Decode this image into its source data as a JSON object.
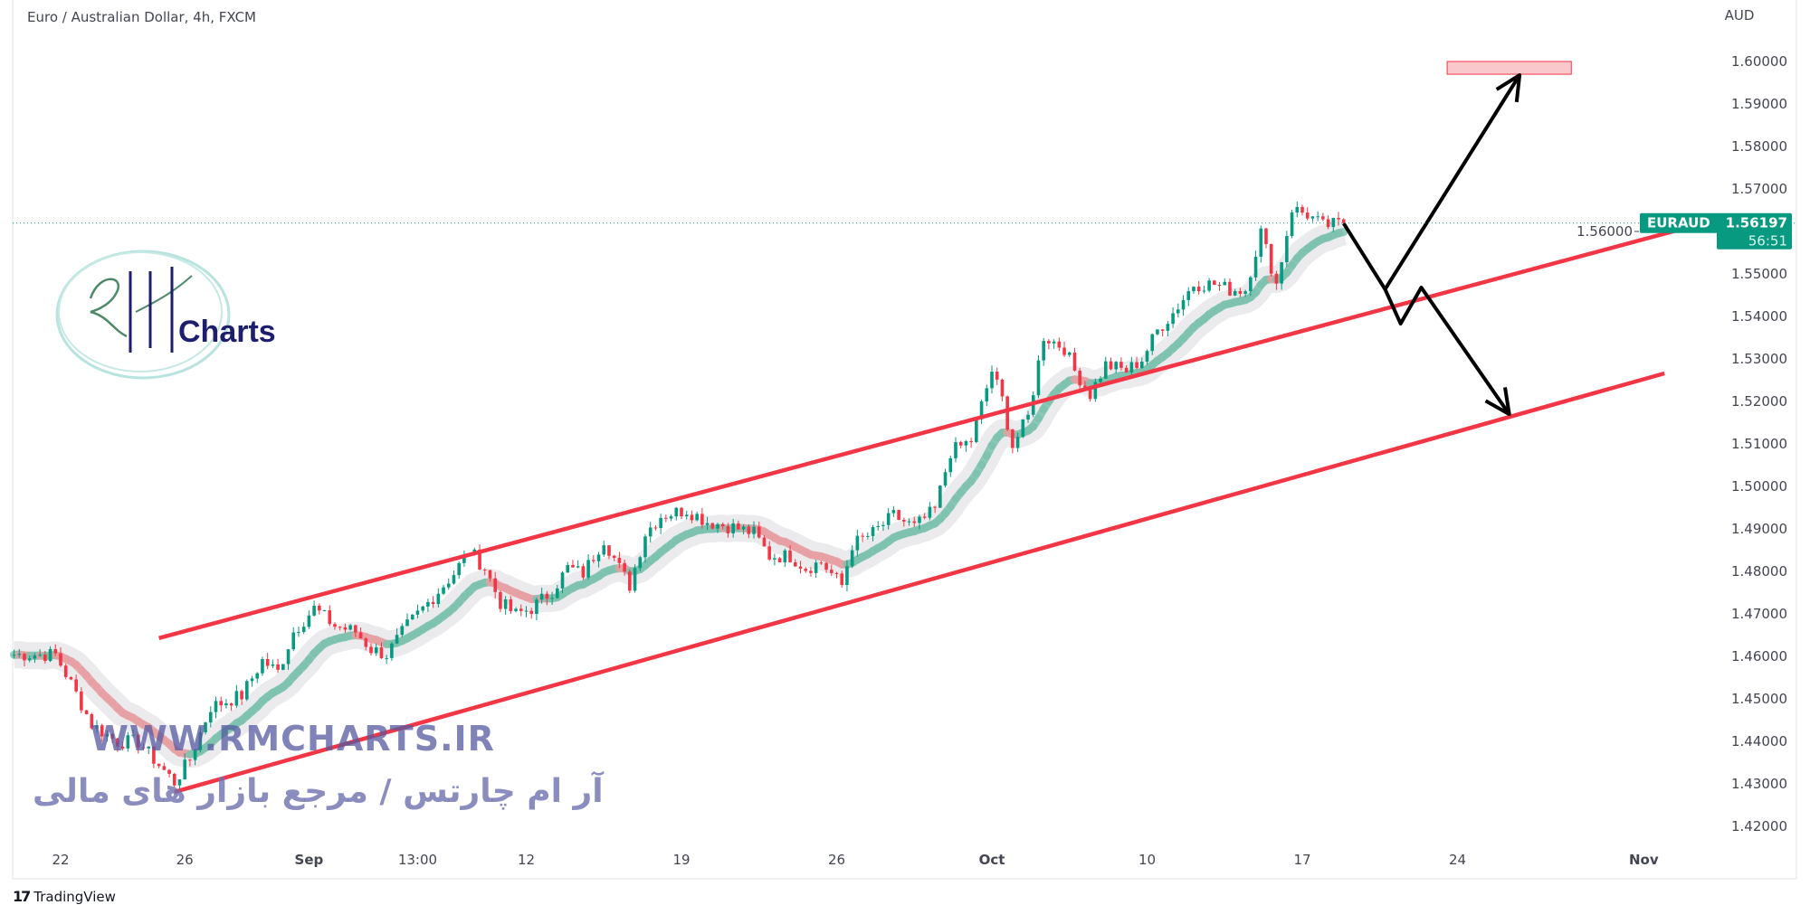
{
  "header": {
    "title": "Euro / Australian Dollar, 4h, FXCM"
  },
  "footer": {
    "brand": "TradingView",
    "brand_mark": "17"
  },
  "watermark": {
    "logo_text": "Charts",
    "logo_script": "RM",
    "url": "WWW.RMCHARTS.IR",
    "persian": "آر ام چارتس / مرجع بازار های مالی"
  },
  "colors": {
    "up": "#089981",
    "down": "#f23645",
    "channel": "#f23645",
    "arrow": "#000000",
    "target_fill": "#f8c8cc",
    "tag": "#089981",
    "ma_up": "#7cc2ae",
    "ma_down": "#e7a0a3"
  },
  "price_tag": {
    "symbol": "EURAUD",
    "price": "1.56197",
    "countdown": "56:51"
  },
  "chart_data": {
    "type": "candlestick",
    "symbol": "EURAUD",
    "interval": "4h",
    "currency_label": "AUD",
    "ylim": [
      1.415,
      1.61
    ],
    "y_ticks": [
      "1.60000",
      "1.59000",
      "1.58000",
      "1.57000",
      "1.56000",
      "1.55000",
      "1.54000",
      "1.53000",
      "1.52000",
      "1.51000",
      "1.50000",
      "1.49000",
      "1.48000",
      "1.47000",
      "1.46000",
      "1.45000",
      "1.44000",
      "1.43000",
      "1.42000"
    ],
    "x_ticks": [
      {
        "label": "22",
        "date": "Aug 22 00:00",
        "bold": false
      },
      {
        "label": "26",
        "date": "Aug 26 00:00",
        "bold": false
      },
      {
        "label": "Sep",
        "date": "Sep 1 00:00",
        "bold": true
      },
      {
        "label": "13:00",
        "date": "Sep 6 12:00",
        "bold": false
      },
      {
        "label": "12",
        "date": "Sep 12 00:00",
        "bold": false
      },
      {
        "label": "19",
        "date": "Sep 19 00:00",
        "bold": false
      },
      {
        "label": "26",
        "date": "Sep 26 00:00",
        "bold": false
      },
      {
        "label": "Oct",
        "date": "Oct 3 00:00",
        "bold": true
      },
      {
        "label": "10",
        "date": "Oct 10 00:00",
        "bold": false
      },
      {
        "label": "17",
        "date": "Oct 17 00:00",
        "bold": false
      },
      {
        "label": "24",
        "date": "Oct 24 00:00",
        "bold": false
      },
      {
        "label": "Nov",
        "date": "Nov 1 00:00",
        "bold": true
      }
    ],
    "last_price": 1.56197,
    "close_path": [
      [
        "Aug 18 12:00",
        1.4604
      ],
      [
        "Aug 19 20:00",
        1.4604
      ],
      [
        "Aug 22 08:00",
        1.4536
      ],
      [
        "Aug 23 00:00",
        1.444
      ],
      [
        "Aug 23 20:00",
        1.4399
      ],
      [
        "Aug 24 12:00",
        1.4399
      ],
      [
        "Aug 25 08:00",
        1.4331
      ],
      [
        "Aug 25 16:00",
        1.4304
      ],
      [
        "Aug 26 04:00",
        1.4358
      ],
      [
        "Aug 26 20:00",
        1.4481
      ],
      [
        "Aug 29 20:00",
        1.4508
      ],
      [
        "Aug 30 12:00",
        1.459
      ],
      [
        "Aug 31 00:00",
        1.4563
      ],
      [
        "Aug 31 12:00",
        1.4658
      ],
      [
        "Sep 1 04:00",
        1.4713
      ],
      [
        "Sep 1 20:00",
        1.4672
      ],
      [
        "Sep 2 12:00",
        1.4658
      ],
      [
        "Sep 5 00:00",
        1.4617
      ],
      [
        "Sep 5 12:00",
        1.4604
      ],
      [
        "Sep 6 04:00",
        1.4672
      ],
      [
        "Sep 6 20:00",
        1.4726
      ],
      [
        "Sep 7 16:00",
        1.4795
      ],
      [
        "Sep 8 04:00",
        1.4849
      ],
      [
        "Sep 8 16:00",
        1.4808
      ],
      [
        "Sep 9 04:00",
        1.4726
      ],
      [
        "Sep 9 16:00",
        1.4699
      ],
      [
        "Sep 12 04:00",
        1.4713
      ],
      [
        "Sep 12 20:00",
        1.4754
      ],
      [
        "Sep 13 08:00",
        1.4808
      ],
      [
        "Sep 13 20:00",
        1.4795
      ],
      [
        "Sep 14 12:00",
        1.4876
      ],
      [
        "Sep 15 00:00",
        1.4808
      ],
      [
        "Sep 15 08:00",
        1.4767
      ],
      [
        "Sep 15 20:00",
        1.489
      ],
      [
        "Sep 16 08:00",
        1.4931
      ],
      [
        "Sep 19 04:00",
        1.4945
      ],
      [
        "Sep 19 20:00",
        1.4917
      ],
      [
        "Sep 20 16:00",
        1.4904
      ],
      [
        "Sep 21 08:00",
        1.489
      ],
      [
        "Sep 21 20:00",
        1.4836
      ],
      [
        "Sep 22 12:00",
        1.4836
      ],
      [
        "Sep 23 00:00",
        1.4808
      ],
      [
        "Sep 23 12:00",
        1.4822
      ],
      [
        "Sep 26 04:00",
        1.4767
      ],
      [
        "Sep 26 12:00",
        1.4863
      ],
      [
        "Sep 27 04:00",
        1.489
      ],
      [
        "Sep 27 20:00",
        1.4931
      ],
      [
        "Sep 28 12:00",
        1.4904
      ],
      [
        "Sep 29 04:00",
        1.4945
      ],
      [
        "Sep 29 16:00",
        1.5081
      ],
      [
        "Sep 30 08:00",
        1.5108
      ],
      [
        "Sep 30 16:00",
        1.519
      ],
      [
        "Oct 3 00:00",
        1.5272
      ],
      [
        "Oct 3 08:00",
        1.5204
      ],
      [
        "Oct 3 16:00",
        1.5095
      ],
      [
        "Oct 4 04:00",
        1.5163
      ],
      [
        "Oct 4 16:00",
        1.5354
      ],
      [
        "Oct 5 08:00",
        1.5326
      ],
      [
        "Oct 5 16:00",
        1.5272
      ],
      [
        "Oct 6 04:00",
        1.5217
      ],
      [
        "Oct 6 16:00",
        1.5286
      ],
      [
        "Oct 7 08:00",
        1.5272
      ],
      [
        "Oct 7 20:00",
        1.5299
      ],
      [
        "Oct 10 08:00",
        1.5367
      ],
      [
        "Oct 10 20:00",
        1.5408
      ],
      [
        "Oct 11 12:00",
        1.5476
      ],
      [
        "Oct 12 04:00",
        1.5476
      ],
      [
        "Oct 12 16:00",
        1.5463
      ],
      [
        "Oct 13 04:00",
        1.5463
      ],
      [
        "Oct 13 16:00",
        1.5599
      ],
      [
        "Oct 14 04:00",
        1.5476
      ],
      [
        "Oct 14 16:00",
        1.5654
      ],
      [
        "Oct 17 04:00",
        1.564
      ],
      [
        "Oct 17 16:00",
        1.5613
      ],
      [
        "Oct 18 08:00",
        1.56197
      ]
    ],
    "drawings": {
      "channel_upper": [
        [
          "Aug 25 04:00",
          1.4643
        ],
        [
          "Nov 3 16:00",
          1.5634
        ]
      ],
      "channel_lower": [
        [
          "Aug 25 16:00",
          1.4281
        ],
        [
          "Nov 1 16:00",
          1.5266
        ]
      ],
      "target_zone": {
        "from": "Oct 21 16:00",
        "to": "Oct 27 16:00",
        "top": 1.6,
        "bottom": 1.597
      },
      "bull_path": [
        [
          "Oct 18 08:00",
          1.5619
        ],
        [
          "Oct 19 16:00",
          1.5464
        ],
        [
          "Oct 26 00:00",
          1.5968
        ]
      ],
      "bear_path": [
        [
          "Oct 19 16:00",
          1.5464
        ],
        [
          "Oct 20 04:00",
          1.5383
        ],
        [
          "Oct 20 20:00",
          1.5468
        ],
        [
          "Oct 25 16:00",
          1.517
        ]
      ]
    }
  }
}
